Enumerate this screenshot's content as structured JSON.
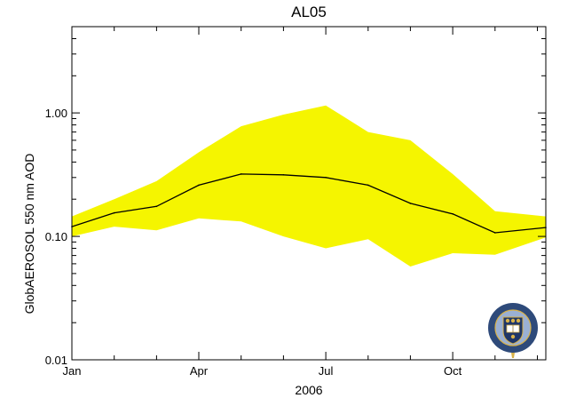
{
  "chart_data": {
    "type": "area",
    "title": "AL05",
    "xlabel": "2006",
    "ylabel": "GlobAEROSOL 550 nm AOD",
    "yscale": "log",
    "ylim": [
      0.01,
      5.0
    ],
    "xlim": [
      0,
      11.2
    ],
    "xticks": [
      {
        "x": 0,
        "label": "Jan"
      },
      {
        "x": 3,
        "label": "Apr"
      },
      {
        "x": 6,
        "label": "Jul"
      },
      {
        "x": 9,
        "label": "Oct"
      }
    ],
    "yticks": [
      {
        "y": 0.01,
        "label": "0.01"
      },
      {
        "y": 0.1,
        "label": "0.10"
      },
      {
        "y": 1.0,
        "label": "1.00"
      }
    ],
    "grid": false,
    "x": [
      0,
      1,
      2,
      3,
      4,
      5,
      6,
      7,
      8,
      9,
      10,
      11.2
    ],
    "series": [
      {
        "role": "mean",
        "color": "#000000",
        "values": [
          0.12,
          0.155,
          0.175,
          0.26,
          0.32,
          0.315,
          0.3,
          0.26,
          0.185,
          0.152,
          0.107,
          0.118
        ]
      },
      {
        "role": "range",
        "color": "#f5f500",
        "lower": [
          0.1,
          0.12,
          0.112,
          0.14,
          0.132,
          0.1,
          0.08,
          0.095,
          0.057,
          0.073,
          0.071,
          0.098
        ],
        "upper": [
          0.145,
          0.2,
          0.28,
          0.48,
          0.78,
          0.97,
          1.15,
          0.7,
          0.6,
          0.32,
          0.16,
          0.145
        ]
      }
    ]
  },
  "logo": {
    "name": "university-of-oxford-seal",
    "ring_text": "UNIVERSITAS OXONIENSIS",
    "colors": {
      "ring": "#2e4a7a",
      "field": "#9ab0d4",
      "gold": "#d8b24a"
    }
  }
}
